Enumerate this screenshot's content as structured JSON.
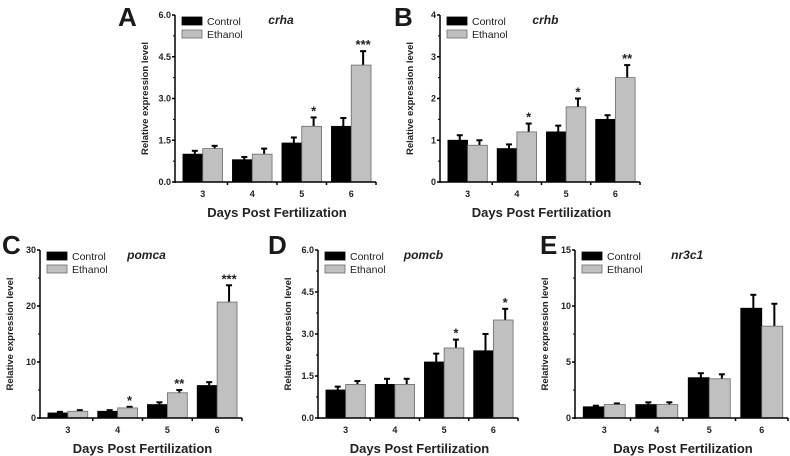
{
  "chart_data": [
    {
      "type": "bar",
      "panel": "A",
      "title": "crha",
      "xlabel": "Days Post Fertilization",
      "ylabel": "Relative expression level",
      "categories": [
        "3",
        "4",
        "5",
        "6"
      ],
      "yticks": [
        "0.0",
        "1.5",
        "3.0",
        "4.5",
        "6.0"
      ],
      "ylim": [
        0,
        6
      ],
      "series": [
        {
          "name": "Control",
          "color": "#000000",
          "values": [
            1.0,
            0.8,
            1.4,
            2.0
          ],
          "errors": [
            0.12,
            0.1,
            0.2,
            0.3
          ]
        },
        {
          "name": "Ethanol",
          "color": "#c0c0c0",
          "values": [
            1.2,
            1.0,
            2.0,
            4.2
          ],
          "errors": [
            0.1,
            0.2,
            0.32,
            0.5
          ]
        }
      ],
      "significance": [
        "",
        "",
        "*",
        "***"
      ]
    },
    {
      "type": "bar",
      "panel": "B",
      "title": "crhb",
      "xlabel": "Days Post Fertilization",
      "ylabel": "Relative expression level",
      "categories": [
        "3",
        "4",
        "5",
        "6"
      ],
      "yticks": [
        "0",
        "1",
        "2",
        "3",
        "4"
      ],
      "ylim": [
        0,
        4
      ],
      "series": [
        {
          "name": "Control",
          "color": "#000000",
          "values": [
            1.0,
            0.8,
            1.2,
            1.5
          ],
          "errors": [
            0.12,
            0.1,
            0.15,
            0.1
          ]
        },
        {
          "name": "Ethanol",
          "color": "#c0c0c0",
          "values": [
            0.88,
            1.2,
            1.8,
            2.5
          ],
          "errors": [
            0.12,
            0.2,
            0.2,
            0.3
          ]
        }
      ],
      "significance": [
        "",
        "*",
        "*",
        "**"
      ]
    },
    {
      "type": "bar",
      "panel": "C",
      "title": "pomca",
      "xlabel": "Days Post Fertilization",
      "ylabel": "Relative expression level",
      "categories": [
        "3",
        "4",
        "5",
        "6"
      ],
      "yticks": [
        "0",
        "10",
        "20",
        "30"
      ],
      "ylim": [
        0,
        30
      ],
      "series": [
        {
          "name": "Control",
          "color": "#000000",
          "values": [
            0.9,
            1.2,
            2.4,
            5.8
          ],
          "errors": [
            0.2,
            0.2,
            0.4,
            0.6
          ]
        },
        {
          "name": "Ethanol",
          "color": "#c0c0c0",
          "values": [
            1.2,
            1.8,
            4.5,
            20.7
          ],
          "errors": [
            0.2,
            0.2,
            0.5,
            3.0
          ]
        }
      ],
      "significance": [
        "",
        "*",
        "**",
        "***"
      ]
    },
    {
      "type": "bar",
      "panel": "D",
      "title": "pomcb",
      "xlabel": "Days Post Fertilization",
      "ylabel": "Relative expression level",
      "categories": [
        "3",
        "4",
        "5",
        "6"
      ],
      "yticks": [
        "0.0",
        "1.5",
        "3.0",
        "4.5",
        "6.0"
      ],
      "ylim": [
        0,
        6
      ],
      "series": [
        {
          "name": "Control",
          "color": "#000000",
          "values": [
            1.0,
            1.2,
            2.0,
            2.4
          ],
          "errors": [
            0.12,
            0.2,
            0.3,
            0.6
          ]
        },
        {
          "name": "Ethanol",
          "color": "#c0c0c0",
          "values": [
            1.2,
            1.2,
            2.5,
            3.5
          ],
          "errors": [
            0.12,
            0.2,
            0.3,
            0.4
          ]
        }
      ],
      "significance": [
        "",
        "",
        "*",
        "*"
      ]
    },
    {
      "type": "bar",
      "panel": "E",
      "title": "nr3c1",
      "xlabel": "Days Post Fertilization",
      "ylabel": "Relative expression level",
      "categories": [
        "3",
        "4",
        "5",
        "6"
      ],
      "yticks": [
        "0",
        "5",
        "10",
        "15"
      ],
      "ylim": [
        0,
        15
      ],
      "series": [
        {
          "name": "Control",
          "color": "#000000",
          "values": [
            1.0,
            1.2,
            3.6,
            9.8
          ],
          "errors": [
            0.1,
            0.2,
            0.4,
            1.2
          ]
        },
        {
          "name": "Ethanol",
          "color": "#c0c0c0",
          "values": [
            1.2,
            1.2,
            3.5,
            8.2
          ],
          "errors": [
            0.1,
            0.2,
            0.4,
            2.0
          ]
        }
      ],
      "significance": [
        "",
        "",
        "",
        ""
      ]
    }
  ]
}
